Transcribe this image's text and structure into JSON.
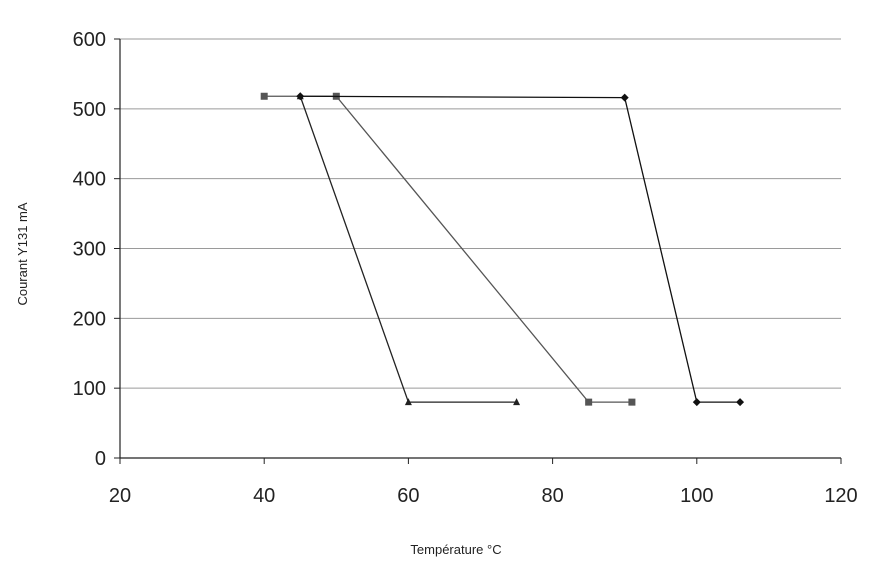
{
  "chart_data": {
    "type": "line",
    "title": "",
    "xlabel": "Température °C",
    "ylabel": "Courant Y131 mA",
    "xlim": [
      20,
      120
    ],
    "ylim": [
      0,
      600
    ],
    "x_ticks": [
      20,
      40,
      60,
      80,
      100,
      120
    ],
    "y_ticks": [
      0,
      100,
      200,
      300,
      400,
      500,
      600
    ],
    "x_tick_labels": [
      "20",
      "40",
      "60",
      "80",
      "100",
      "120"
    ],
    "y_tick_labels": [
      "0",
      "100",
      "200",
      "300",
      "400",
      "500",
      "600"
    ],
    "grid": "horizontal",
    "legend": "none",
    "series": [
      {
        "marker": "triangle",
        "color": "#222222",
        "points": [
          [
            45,
            518
          ],
          [
            60,
            80
          ],
          [
            75,
            80
          ]
        ]
      },
      {
        "marker": "square",
        "color": "#555555",
        "points": [
          [
            40,
            518
          ],
          [
            50,
            518
          ],
          [
            85,
            80
          ],
          [
            91,
            80
          ]
        ]
      },
      {
        "marker": "diamond",
        "color": "#111111",
        "points": [
          [
            45,
            518
          ],
          [
            90,
            516
          ],
          [
            100,
            80
          ],
          [
            106,
            80
          ]
        ]
      }
    ]
  }
}
